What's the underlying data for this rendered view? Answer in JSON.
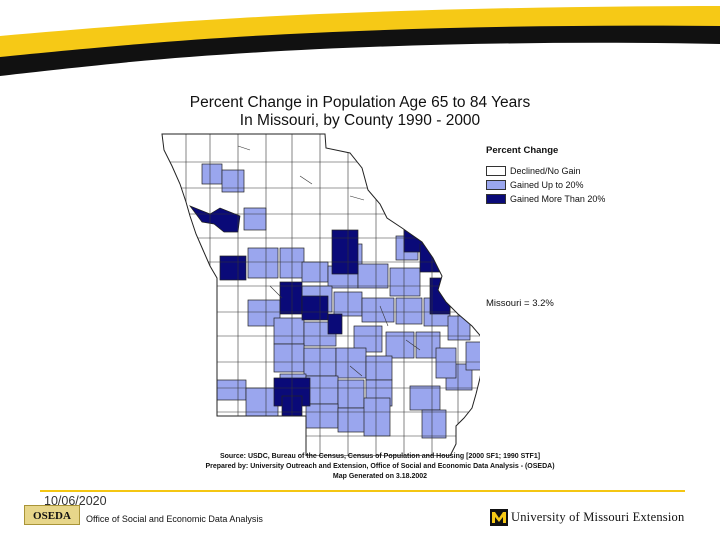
{
  "map": {
    "title_line1": "Percent Change in Population Age 65 to 84 Years",
    "title_line2": "In Missouri, by County  1990 - 2000"
  },
  "legend": {
    "title": "Percent Change",
    "items": [
      {
        "label": "Declined/No Gain",
        "color": "#ffffff"
      },
      {
        "label": "Gained Up to 20%",
        "color": "#9aa6ee"
      },
      {
        "label": "Gained More Than 20%",
        "color": "#0a0a78"
      }
    ]
  },
  "summary": "Missouri = 3.2%",
  "source": {
    "line1": "Source:  USDC, Bureau of the Census, Census of Population and Housing [2000 SF1; 1990 STF1]",
    "line2": "Prepared by: University Outreach and Extension, Office of Social and Economic Data Analysis - (OSEDA)",
    "line3": "Map Generated on 3.18.2002"
  },
  "footer": {
    "date": "10/06/2020",
    "logo_text": "OSEDA",
    "office": "Office of Social and Economic Data Analysis",
    "university": "University of Missouri Extension"
  },
  "colors": {
    "banner_gold": "#f6c916",
    "banner_dark": "#111111",
    "accent_rule": "#f4c613"
  }
}
